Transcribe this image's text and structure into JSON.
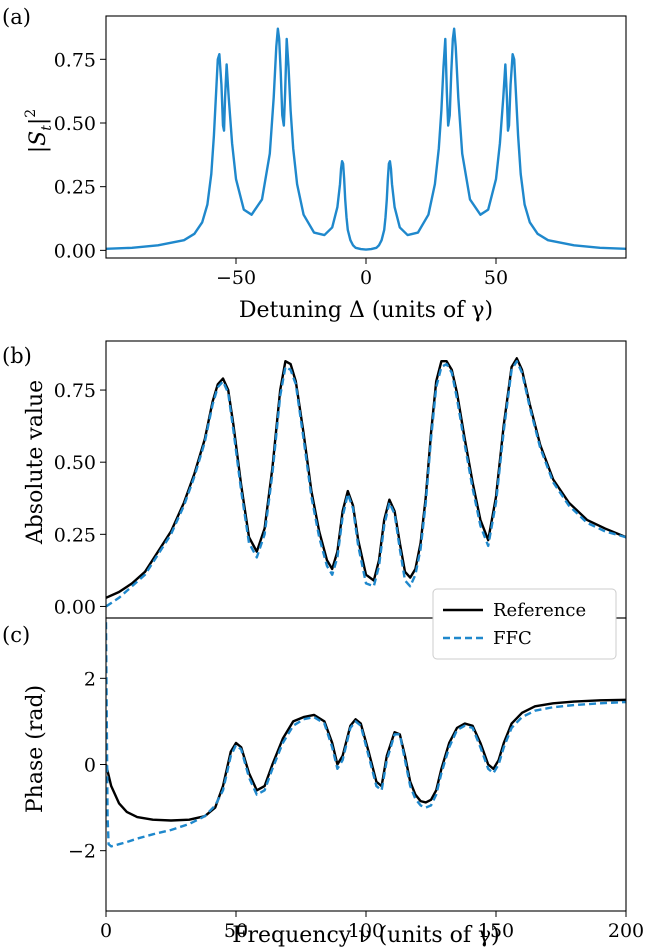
{
  "chart_data": [
    {
      "panel_label": "(a)",
      "type": "line",
      "xlabel": "Detuning Δ (units of γ)",
      "ylabel": "|S_t|^2",
      "xlim": [
        -100,
        100
      ],
      "ylim": [
        -0.03,
        0.92
      ],
      "xticks": [
        -50,
        0,
        50
      ],
      "xtick_labels": [
        "−50",
        "0",
        "50"
      ],
      "yticks": [
        0.0,
        0.25,
        0.5,
        0.75
      ],
      "ytick_labels": [
        "0.00",
        "0.25",
        "0.50",
        "0.75"
      ],
      "grid": false,
      "series": [
        {
          "color": "#1f88cc",
          "style": "solid",
          "x": [
            -100,
            -90,
            -80,
            -70,
            -66,
            -63,
            -61,
            -59.5,
            -58.5,
            -57.5,
            -57,
            -56.4,
            -55.6,
            -55,
            -54.6,
            -54.2,
            -53.6,
            -52.8,
            -51.5,
            -50,
            -47,
            -44,
            -40,
            -37,
            -35.5,
            -34.5,
            -33.9,
            -33.4,
            -32.8,
            -32.2,
            -31.6,
            -31.1,
            -30.5,
            -29.8,
            -29,
            -28,
            -26.5,
            -24,
            -20,
            -16,
            -13,
            -11,
            -10,
            -9.6,
            -9.2,
            -8.8,
            -8.4,
            -8,
            -7.5,
            -7,
            -6,
            -5,
            -4,
            -2,
            0,
            2,
            4,
            5,
            6,
            7,
            7.5,
            8,
            8.4,
            8.8,
            9.2,
            9.6,
            10,
            11,
            13,
            16,
            20,
            24,
            26.5,
            28,
            29,
            29.8,
            30.5,
            31.1,
            31.6,
            32.2,
            32.8,
            33.4,
            33.9,
            34.5,
            35.5,
            37,
            40,
            44,
            47,
            50,
            51.5,
            52.8,
            53.6,
            54.2,
            54.6,
            55,
            55.6,
            56.4,
            57,
            57.5,
            58.5,
            59.5,
            61,
            63,
            66,
            70,
            80,
            90,
            100
          ],
          "y": [
            0.006,
            0.01,
            0.02,
            0.04,
            0.065,
            0.11,
            0.18,
            0.3,
            0.45,
            0.65,
            0.75,
            0.77,
            0.65,
            0.49,
            0.47,
            0.6,
            0.73,
            0.6,
            0.42,
            0.28,
            0.16,
            0.14,
            0.2,
            0.38,
            0.6,
            0.8,
            0.87,
            0.83,
            0.7,
            0.53,
            0.49,
            0.62,
            0.83,
            0.72,
            0.55,
            0.4,
            0.26,
            0.14,
            0.07,
            0.06,
            0.09,
            0.17,
            0.26,
            0.32,
            0.35,
            0.34,
            0.28,
            0.2,
            0.13,
            0.08,
            0.04,
            0.02,
            0.01,
            0.005,
            0.003,
            0.005,
            0.01,
            0.02,
            0.04,
            0.08,
            0.13,
            0.2,
            0.28,
            0.34,
            0.35,
            0.32,
            0.26,
            0.17,
            0.09,
            0.06,
            0.07,
            0.14,
            0.26,
            0.4,
            0.55,
            0.72,
            0.83,
            0.62,
            0.49,
            0.53,
            0.7,
            0.83,
            0.87,
            0.8,
            0.6,
            0.38,
            0.2,
            0.14,
            0.16,
            0.28,
            0.42,
            0.6,
            0.73,
            0.6,
            0.47,
            0.49,
            0.65,
            0.77,
            0.75,
            0.65,
            0.45,
            0.3,
            0.18,
            0.11,
            0.065,
            0.04,
            0.02,
            0.01,
            0.006
          ]
        }
      ]
    },
    {
      "panel_label": "(b)",
      "type": "line",
      "xlabel": "",
      "ylabel": "Absolute value",
      "xlim": [
        0,
        200
      ],
      "ylim": [
        -0.04,
        0.92
      ],
      "yticks": [
        0.0,
        0.25,
        0.5,
        0.75
      ],
      "ytick_labels": [
        "0.00",
        "0.25",
        "0.50",
        "0.75"
      ],
      "grid": false,
      "series": [
        {
          "name": "Reference",
          "color": "#000000",
          "style": "solid",
          "x": [
            0,
            5,
            10,
            15,
            20,
            25,
            30,
            34,
            38,
            41,
            43,
            45,
            47,
            49,
            52,
            55,
            58,
            61,
            64,
            67,
            69,
            71,
            73,
            76,
            79,
            82,
            85,
            87,
            89,
            91,
            93,
            95,
            97,
            100,
            103,
            105,
            107,
            109,
            111,
            113,
            115,
            117,
            119,
            121,
            123,
            125,
            127,
            129,
            131,
            133,
            135,
            138,
            141,
            144,
            147,
            150,
            153,
            156,
            158,
            160,
            163,
            167,
            172,
            178,
            185,
            192,
            200
          ],
          "y": [
            0.03,
            0.05,
            0.08,
            0.12,
            0.19,
            0.26,
            0.36,
            0.46,
            0.58,
            0.71,
            0.77,
            0.79,
            0.75,
            0.63,
            0.42,
            0.24,
            0.19,
            0.27,
            0.48,
            0.75,
            0.85,
            0.84,
            0.78,
            0.6,
            0.4,
            0.26,
            0.16,
            0.13,
            0.19,
            0.33,
            0.4,
            0.35,
            0.23,
            0.11,
            0.09,
            0.16,
            0.3,
            0.37,
            0.33,
            0.22,
            0.12,
            0.1,
            0.13,
            0.22,
            0.38,
            0.6,
            0.78,
            0.85,
            0.85,
            0.82,
            0.74,
            0.58,
            0.43,
            0.3,
            0.23,
            0.38,
            0.63,
            0.83,
            0.86,
            0.82,
            0.7,
            0.56,
            0.44,
            0.36,
            0.3,
            0.27,
            0.24
          ]
        },
        {
          "name": "FFC",
          "color": "#1f88cc",
          "style": "dashed",
          "x": [
            0,
            5,
            10,
            15,
            20,
            25,
            30,
            34,
            38,
            41,
            43,
            45,
            47,
            49,
            52,
            55,
            58,
            61,
            64,
            67,
            69,
            71,
            73,
            76,
            79,
            82,
            85,
            87,
            89,
            91,
            93,
            95,
            97,
            100,
            103,
            105,
            107,
            109,
            111,
            113,
            115,
            117,
            119,
            121,
            123,
            125,
            127,
            129,
            131,
            133,
            135,
            138,
            141,
            144,
            147,
            150,
            153,
            156,
            158,
            160,
            163,
            167,
            172,
            178,
            185,
            192,
            200
          ],
          "y": [
            0.0,
            0.03,
            0.07,
            0.11,
            0.18,
            0.25,
            0.35,
            0.45,
            0.57,
            0.7,
            0.76,
            0.78,
            0.74,
            0.61,
            0.4,
            0.22,
            0.17,
            0.25,
            0.46,
            0.73,
            0.83,
            0.82,
            0.77,
            0.58,
            0.38,
            0.24,
            0.14,
            0.11,
            0.17,
            0.31,
            0.39,
            0.34,
            0.21,
            0.08,
            0.07,
            0.14,
            0.28,
            0.36,
            0.32,
            0.2,
            0.09,
            0.07,
            0.11,
            0.2,
            0.36,
            0.58,
            0.76,
            0.83,
            0.84,
            0.81,
            0.72,
            0.56,
            0.41,
            0.28,
            0.21,
            0.36,
            0.61,
            0.82,
            0.85,
            0.81,
            0.69,
            0.55,
            0.43,
            0.35,
            0.29,
            0.26,
            0.24
          ]
        }
      ],
      "legend": {
        "placement": "lower-right",
        "entries": [
          "Reference",
          "FFC"
        ]
      }
    },
    {
      "panel_label": "(c)",
      "type": "line",
      "xlabel": "Frequency ν (units of γ)",
      "ylabel": "Phase (rad)",
      "xlim": [
        0,
        200
      ],
      "ylim": [
        -3.4,
        3.4
      ],
      "xticks": [
        0,
        50,
        100,
        150,
        200
      ],
      "xtick_labels": [
        "0",
        "50",
        "100",
        "150",
        "200"
      ],
      "yticks": [
        -2,
        0,
        2
      ],
      "ytick_labels": [
        "−2",
        "0",
        "2"
      ],
      "grid": false,
      "series": [
        {
          "name": "Reference",
          "color": "#000000",
          "style": "solid",
          "x": [
            0,
            2,
            5,
            8,
            12,
            18,
            25,
            32,
            38,
            42,
            45,
            48,
            50,
            52,
            55,
            58,
            61,
            64,
            68,
            72,
            76,
            80,
            84,
            87,
            89,
            91,
            94,
            96,
            98,
            101,
            104,
            106,
            108,
            111,
            113,
            115,
            117,
            119,
            121,
            123,
            125,
            127,
            129,
            132,
            135,
            138,
            141,
            144,
            147,
            149,
            151,
            153,
            156,
            160,
            165,
            172,
            180,
            190,
            200
          ],
          "y": [
            0.0,
            -0.5,
            -0.9,
            -1.1,
            -1.22,
            -1.28,
            -1.3,
            -1.28,
            -1.2,
            -1.0,
            -0.5,
            0.3,
            0.5,
            0.4,
            -0.2,
            -0.6,
            -0.5,
            0.0,
            0.6,
            1.0,
            1.1,
            1.15,
            1.0,
            0.5,
            0.0,
            0.2,
            0.9,
            1.05,
            0.95,
            0.3,
            -0.4,
            -0.5,
            0.2,
            0.75,
            0.7,
            0.2,
            -0.4,
            -0.7,
            -0.85,
            -0.88,
            -0.82,
            -0.6,
            -0.1,
            0.5,
            0.85,
            0.95,
            0.9,
            0.5,
            0.0,
            -0.1,
            0.1,
            0.5,
            0.95,
            1.2,
            1.35,
            1.42,
            1.46,
            1.49,
            1.5
          ]
        },
        {
          "name": "FFC",
          "color": "#1f88cc",
          "style": "dashed",
          "x": [
            0,
            0.3,
            0.6,
            1,
            2,
            5,
            8,
            12,
            18,
            25,
            32,
            38,
            42,
            45,
            48,
            50,
            52,
            55,
            58,
            61,
            64,
            68,
            72,
            76,
            80,
            84,
            87,
            89,
            91,
            94,
            96,
            98,
            101,
            104,
            106,
            108,
            111,
            113,
            115,
            117,
            119,
            121,
            123,
            125,
            127,
            129,
            132,
            135,
            138,
            141,
            144,
            147,
            149,
            151,
            153,
            156,
            160,
            165,
            172,
            180,
            190,
            200
          ],
          "y": [
            3.3,
            1.0,
            -1.2,
            -1.85,
            -1.9,
            -1.85,
            -1.8,
            -1.72,
            -1.62,
            -1.52,
            -1.38,
            -1.2,
            -0.95,
            -0.6,
            0.2,
            0.45,
            0.35,
            -0.3,
            -0.7,
            -0.6,
            -0.1,
            0.5,
            0.9,
            1.05,
            1.1,
            0.95,
            0.4,
            -0.1,
            0.1,
            0.85,
            1.0,
            0.9,
            0.2,
            -0.5,
            -0.6,
            0.1,
            0.7,
            0.7,
            0.1,
            -0.5,
            -0.8,
            -0.95,
            -1.0,
            -0.95,
            -0.7,
            -0.2,
            0.4,
            0.8,
            0.9,
            0.85,
            0.4,
            -0.1,
            -0.2,
            0.0,
            0.4,
            0.85,
            1.1,
            1.25,
            1.33,
            1.38,
            1.42,
            1.45
          ]
        }
      ]
    }
  ]
}
